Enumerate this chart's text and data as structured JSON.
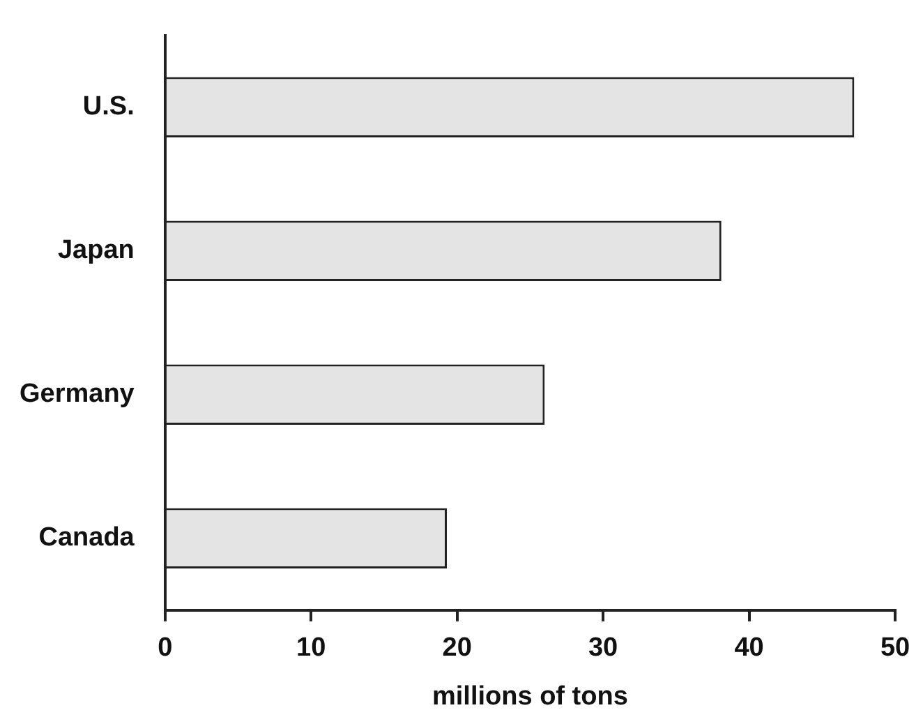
{
  "chart_data": {
    "type": "bar",
    "orientation": "horizontal",
    "xlabel": "millions of tons",
    "categories": [
      "U.S.",
      "Japan",
      "Germany",
      "Canada"
    ],
    "values": [
      47.2,
      38.1,
      26,
      19.3
    ],
    "color": "#e4e4e4",
    "xlim": [
      0,
      50
    ],
    "xticks": [
      0,
      10,
      20,
      30,
      40,
      50
    ],
    "grid": false,
    "legend": false
  }
}
